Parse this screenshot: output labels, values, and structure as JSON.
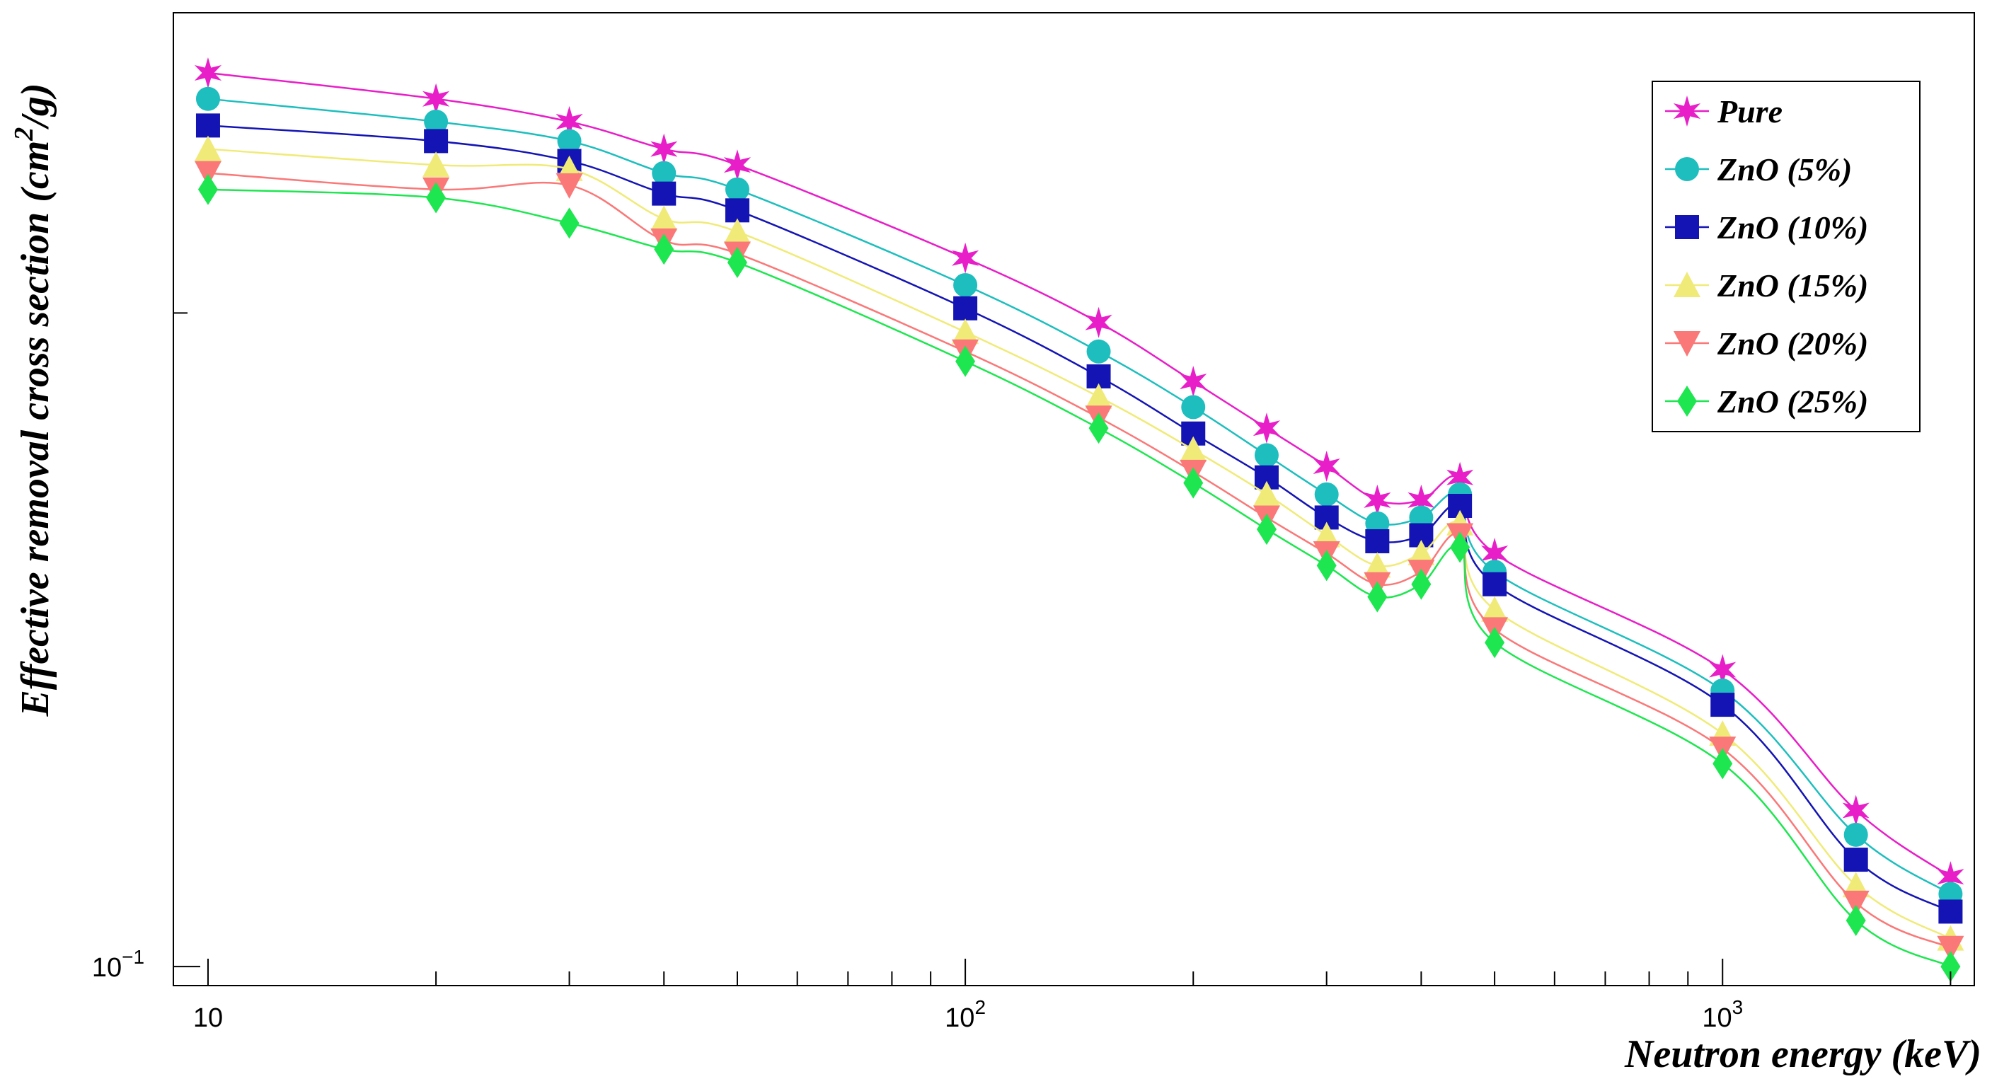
{
  "chart_data": {
    "type": "line",
    "title": "",
    "xlabel": "Neutron energy (keV)",
    "ylabel": "Effective removal cross section (cm²/g)",
    "ylabel_parts": {
      "pre": "Effective removal cross section (cm",
      "sup": "2",
      "post": "/g)"
    },
    "x_scale": "log",
    "y_scale": "log",
    "xlim": [
      9,
      2150
    ],
    "ylim": [
      0.098,
      0.275
    ],
    "x_ticks": [
      {
        "value": 10,
        "base": "10",
        "exp": ""
      },
      {
        "value": 100,
        "base": "10",
        "exp": "2"
      },
      {
        "value": 1000,
        "base": "10",
        "exp": "3"
      }
    ],
    "y_ticks": [
      {
        "value": 0.1,
        "base": "10",
        "exp": "−1"
      }
    ],
    "grid": false,
    "legend_position": "top-right",
    "x": [
      10,
      20,
      30,
      40,
      50,
      100,
      150,
      200,
      250,
      300,
      350,
      400,
      450,
      500,
      1000,
      1500,
      2000
    ],
    "series": [
      {
        "name": "Pure",
        "color": "#e81ec8",
        "marker": "star",
        "values": [
          0.258,
          0.251,
          0.245,
          0.238,
          0.234,
          0.212,
          0.198,
          0.186,
          0.177,
          0.17,
          0.164,
          0.164,
          0.168,
          0.155,
          0.137,
          0.118,
          0.11
        ]
      },
      {
        "name": "ZnO (5%)",
        "color": "#1ebebe",
        "marker": "circle",
        "values": [
          0.251,
          0.245,
          0.24,
          0.232,
          0.228,
          0.206,
          0.192,
          0.181,
          0.172,
          0.165,
          0.16,
          0.161,
          0.165,
          0.152,
          0.134,
          0.115,
          0.108
        ]
      },
      {
        "name": "ZnO (10%)",
        "color": "#1414b4",
        "marker": "square",
        "values": [
          0.244,
          0.24,
          0.235,
          0.227,
          0.223,
          0.201,
          0.187,
          0.176,
          0.168,
          0.161,
          0.157,
          0.158,
          0.163,
          0.15,
          0.132,
          0.112,
          0.106
        ]
      },
      {
        "name": "ZnO (15%)",
        "color": "#f0eb78",
        "marker": "triangle-up",
        "values": [
          0.238,
          0.234,
          0.233,
          0.221,
          0.218,
          0.196,
          0.183,
          0.173,
          0.165,
          0.158,
          0.153,
          0.155,
          0.16,
          0.146,
          0.128,
          0.109,
          0.103
        ]
      },
      {
        "name": "ZnO (20%)",
        "color": "#fa7878",
        "marker": "triangle-down",
        "values": [
          0.232,
          0.228,
          0.229,
          0.216,
          0.213,
          0.192,
          0.179,
          0.169,
          0.161,
          0.155,
          0.15,
          0.152,
          0.158,
          0.143,
          0.126,
          0.107,
          0.102
        ]
      },
      {
        "name": "ZnO (25%)",
        "color": "#1ee650",
        "marker": "diamond",
        "values": [
          0.228,
          0.226,
          0.22,
          0.214,
          0.211,
          0.19,
          0.177,
          0.167,
          0.159,
          0.153,
          0.148,
          0.15,
          0.156,
          0.141,
          0.124,
          0.105,
          0.1
        ]
      }
    ]
  }
}
